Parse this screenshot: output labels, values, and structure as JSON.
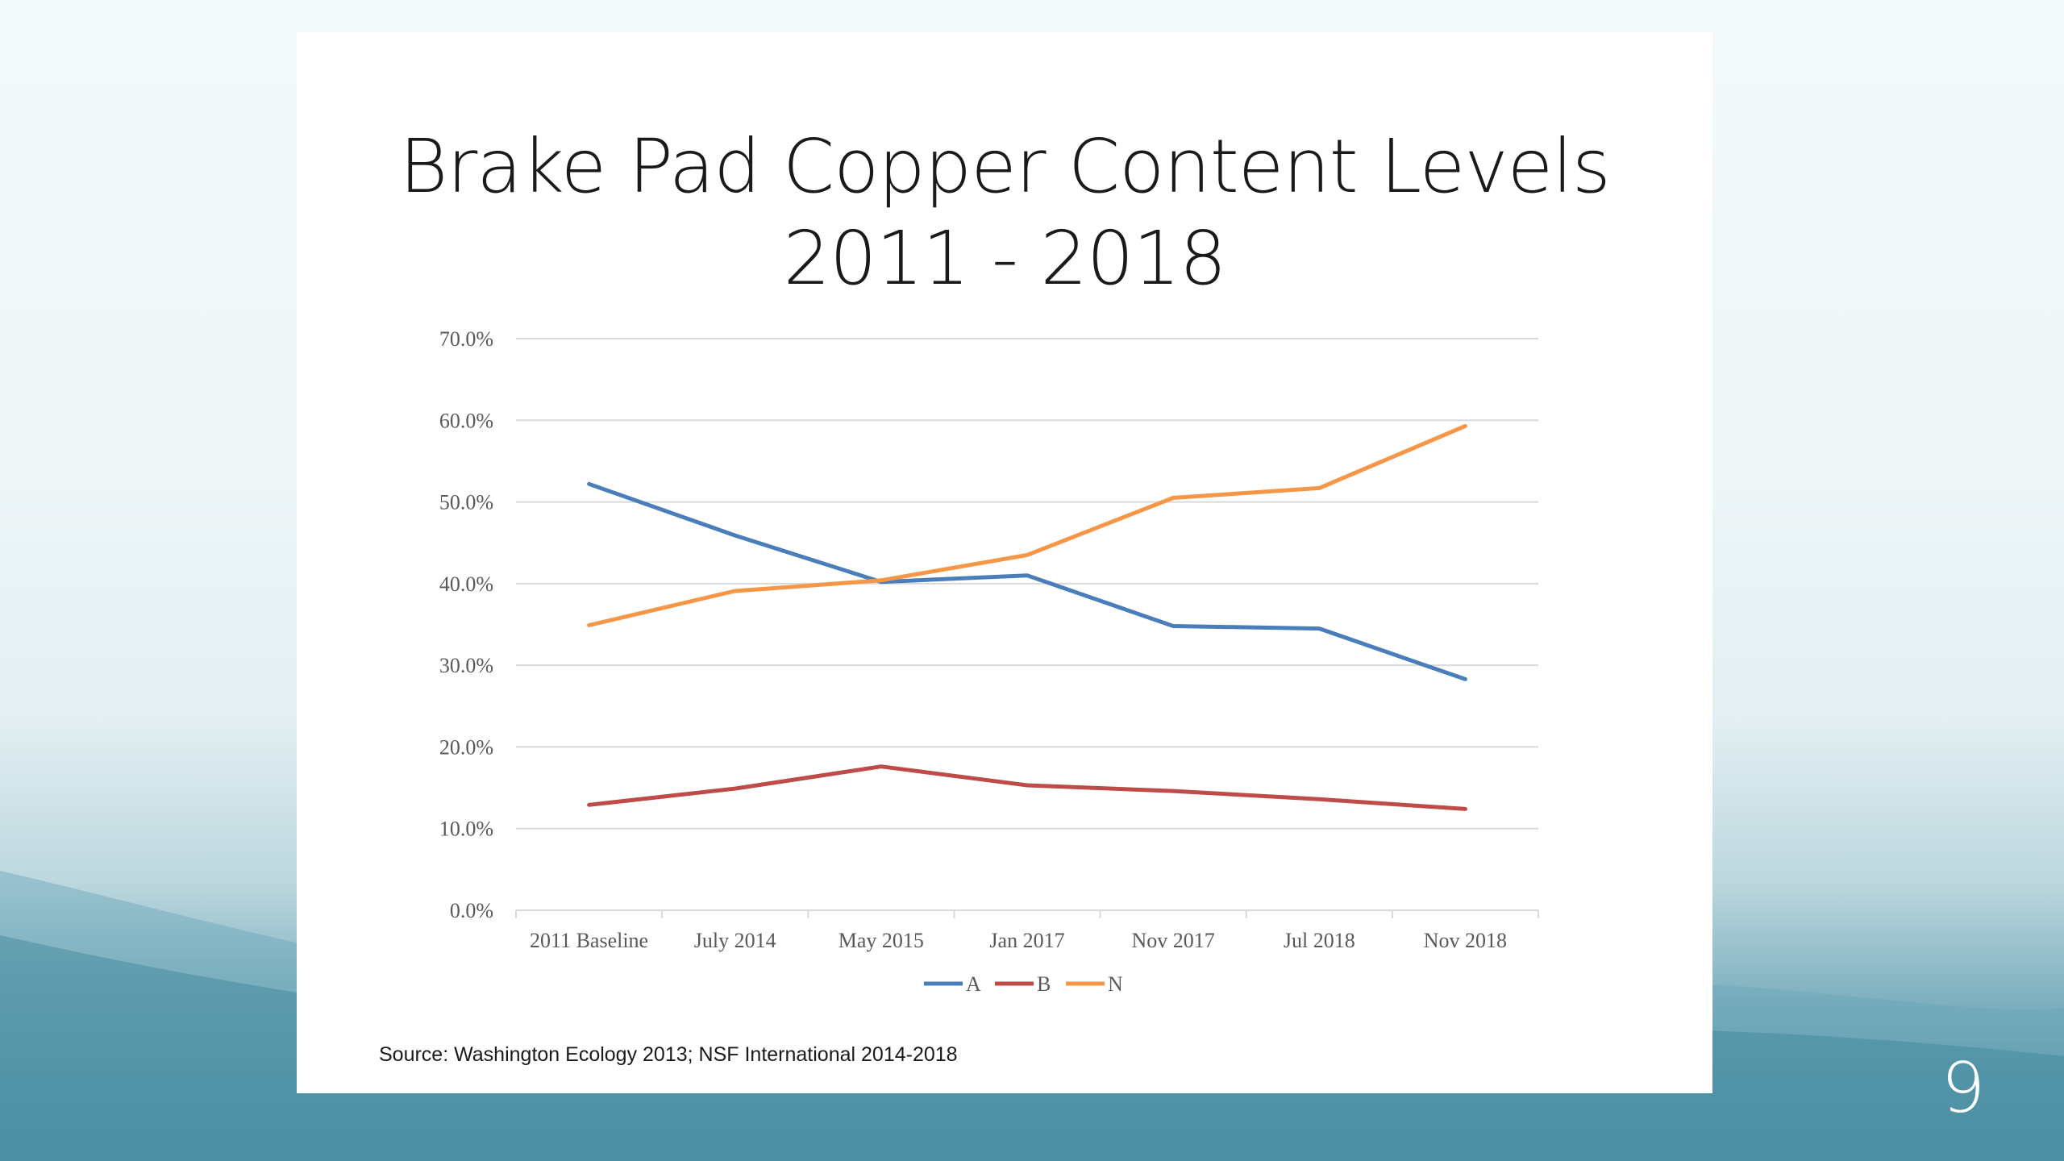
{
  "slide": {
    "title_line1": "Brake Pad Copper Content Levels",
    "title_line2": "2011 - 2018",
    "source": "Source:  Washington Ecology 2013; NSF International 2014-2018",
    "page_number": "9"
  },
  "colors": {
    "A": "#4a7ebb",
    "B": "#be4b48",
    "N": "#f79646",
    "grid": "#d9d9d9",
    "axis_text": "#595959"
  },
  "chart_data": {
    "type": "line",
    "title": "",
    "xlabel": "",
    "ylabel": "",
    "categories": [
      "2011 Baseline",
      "July 2014",
      "May 2015",
      "Jan 2017",
      "Nov 2017",
      "Jul 2018",
      "Nov 2018"
    ],
    "ylim": [
      0,
      70
    ],
    "yticks": [
      0,
      10,
      20,
      30,
      40,
      50,
      60,
      70
    ],
    "ytick_labels": [
      "0.0%",
      "10.0%",
      "20.0%",
      "30.0%",
      "40.0%",
      "50.0%",
      "60.0%",
      "70.0%"
    ],
    "grid": true,
    "legend_position": "bottom",
    "series": [
      {
        "name": "A",
        "values": [
          52.2,
          45.9,
          40.2,
          41.0,
          34.8,
          34.5,
          28.3
        ]
      },
      {
        "name": "B",
        "values": [
          12.9,
          14.9,
          17.6,
          15.3,
          14.6,
          13.6,
          12.4
        ]
      },
      {
        "name": "N",
        "values": [
          34.9,
          39.1,
          40.4,
          43.5,
          50.5,
          51.7,
          59.3
        ]
      }
    ]
  }
}
